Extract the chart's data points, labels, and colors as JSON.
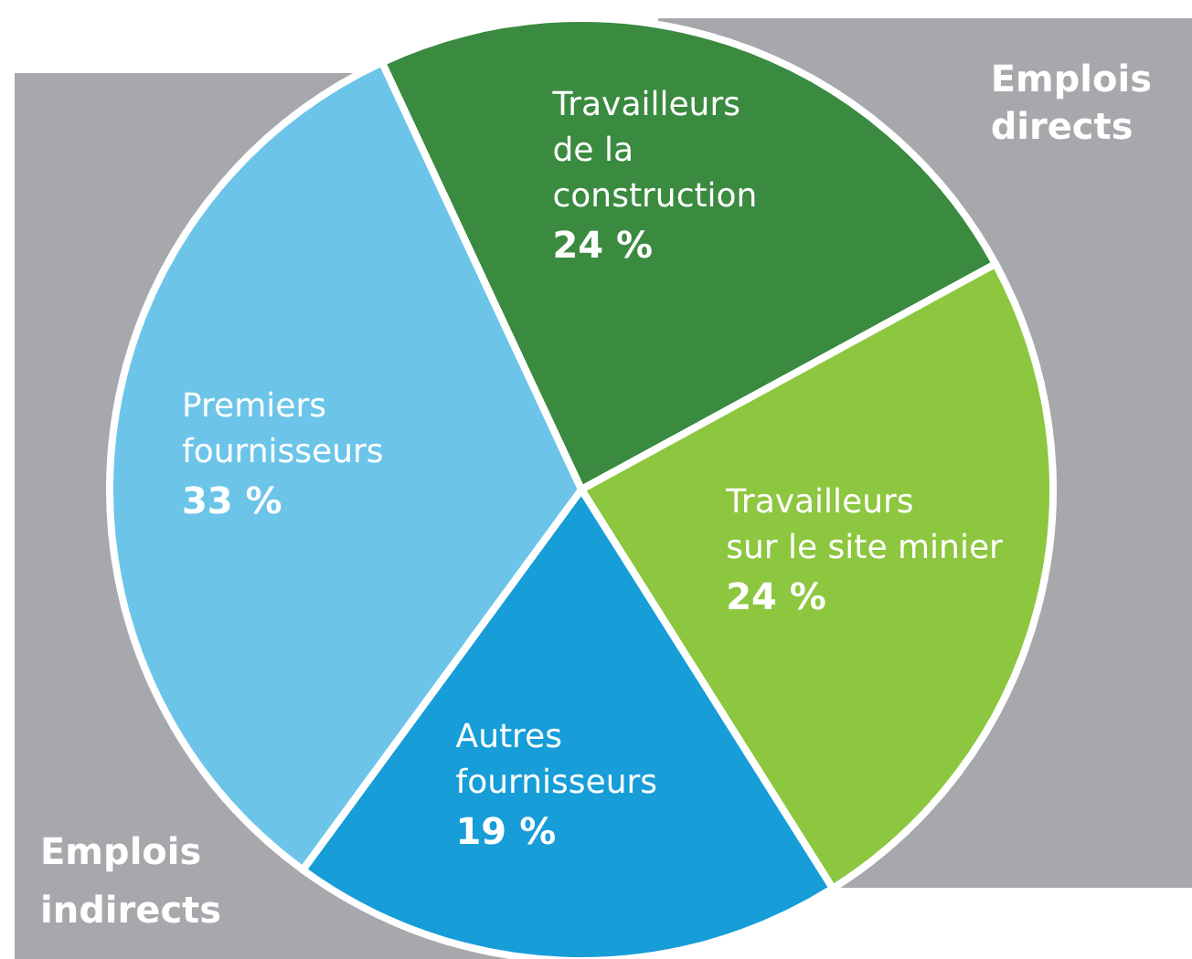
{
  "chart_data": {
    "type": "pie",
    "categories": [
      "Travailleurs\nde la\nconstruction",
      "Travailleurs\nsur le site minier",
      "Autres\nfournisseurs",
      "Premiers\nfournisseurs"
    ],
    "values": [
      24,
      24,
      19,
      33
    ],
    "value_labels": [
      "24 %",
      "24 %",
      "19 %",
      "33 %"
    ],
    "colors": [
      "#3a8a40",
      "#8dc63f",
      "#179dd8",
      "#6cc5e9"
    ],
    "annotations": [
      "Emplois directs",
      "Emplois indirects"
    ],
    "legend": false
  }
}
